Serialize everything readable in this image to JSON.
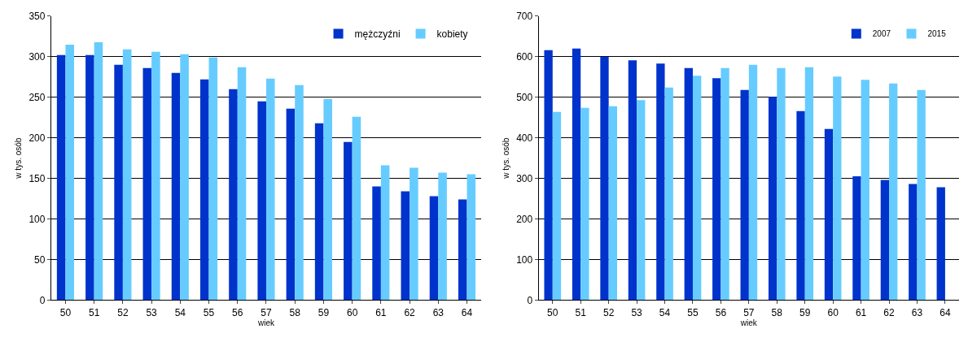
{
  "chart_data": [
    {
      "type": "bar",
      "categories": [
        "50",
        "51",
        "52",
        "53",
        "54",
        "55",
        "56",
        "57",
        "58",
        "59",
        "60",
        "61",
        "62",
        "63",
        "64"
      ],
      "xlabel": "wiek",
      "ylabel": "w tys. osób",
      "ylim": [
        0,
        350
      ],
      "yticks": [
        0,
        50,
        100,
        150,
        200,
        250,
        300,
        350
      ],
      "grid": "y",
      "legend": "top right",
      "series": [
        {
          "name": "mężczyźni",
          "color": "#0033cc",
          "values": [
            302,
            302,
            290,
            286,
            280,
            272,
            260,
            245,
            236,
            218,
            195,
            140,
            134,
            128,
            124
          ]
        },
        {
          "name": "kobiety",
          "color": "#66ccff",
          "values": [
            315,
            318,
            309,
            306,
            303,
            299,
            287,
            273,
            265,
            248,
            226,
            166,
            163,
            157,
            155
          ]
        }
      ]
    },
    {
      "type": "bar",
      "categories": [
        "50",
        "51",
        "52",
        "53",
        "54",
        "55",
        "56",
        "57",
        "58",
        "59",
        "60",
        "61",
        "62",
        "63",
        "64"
      ],
      "xlabel": "wiek",
      "ylabel": "w tys. osób",
      "ylim": [
        0,
        700
      ],
      "yticks": [
        0,
        100,
        200,
        300,
        400,
        500,
        600,
        700
      ],
      "grid": "y",
      "legend": "top right",
      "series": [
        {
          "name": "2007",
          "color": "#0033cc",
          "values": [
            616,
            620,
            600,
            591,
            583,
            572,
            547,
            518,
            501,
            466,
            422,
            305,
            296,
            286,
            278
          ]
        },
        {
          "name": "2015",
          "color": "#66ccff",
          "values": [
            464,
            474,
            478,
            493,
            524,
            553,
            572,
            580,
            572,
            574,
            551,
            543,
            534,
            518,
            null
          ]
        }
      ]
    }
  ]
}
